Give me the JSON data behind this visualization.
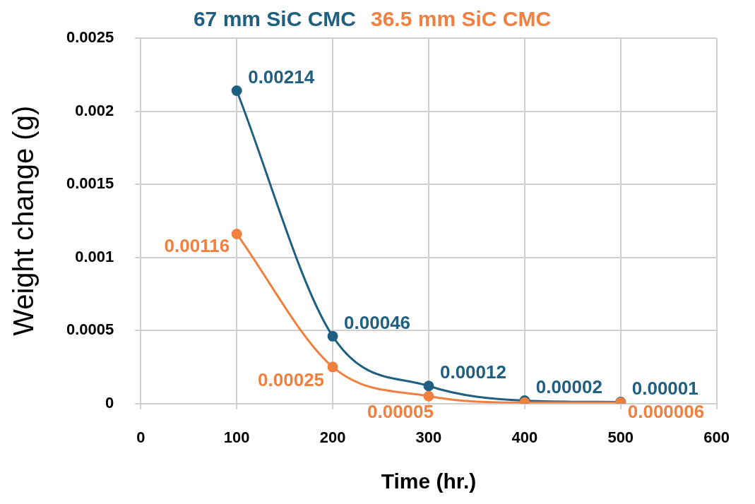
{
  "chart_data": {
    "type": "line",
    "xlabel": "Time (hr.)",
    "ylabel": "Weight change (g)",
    "x": [
      100,
      200,
      300,
      400,
      500
    ],
    "series": [
      {
        "name": "67 mm SiC CMC",
        "color": "#1f5f80",
        "values": [
          0.00214,
          0.00046,
          0.00012,
          2e-05,
          1e-05
        ],
        "value_labels": [
          "0.00214",
          "0.00046",
          "0.00012",
          "0.00002",
          "0.00001"
        ]
      },
      {
        "name": "36.5 mm SiC CMC",
        "color": "#f08040",
        "values": [
          0.00116,
          0.00025,
          5e-05,
          6e-06,
          6e-06
        ],
        "value_labels": [
          "0.00116",
          "0.00025",
          "0.00005",
          null,
          "0.000006"
        ]
      }
    ],
    "xlim": [
      0,
      600
    ],
    "xticks": [
      0,
      100,
      200,
      300,
      400,
      500,
      600
    ],
    "ylim": [
      0,
      0.0025
    ],
    "yticks": [
      0,
      0.0005,
      0.001,
      0.0015,
      0.002,
      0.0025
    ],
    "grid": true,
    "legend": "top",
    "marker": "circle"
  }
}
